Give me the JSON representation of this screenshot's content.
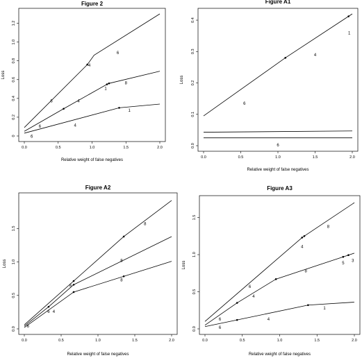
{
  "chart_data": [
    {
      "type": "line",
      "title": "Figure 2",
      "xlabel": "Relative weight of false negatives",
      "ylabel": "Loss",
      "xlim": [
        0,
        2
      ],
      "ylim": [
        0,
        1.3
      ],
      "xticks": [
        "0.0",
        "0.5",
        "1.0",
        "1.5",
        "2.0"
      ],
      "yticks": [
        "0",
        "0.2",
        "0.4",
        "0.6",
        "0.8",
        "1.0",
        "1.2"
      ],
      "series": [
        {
          "x": [
            0,
            0.93,
            1.03,
            2.0
          ],
          "y": [
            0.09,
            0.76,
            0.86,
            1.3
          ],
          "markers": [
            0.93
          ]
        },
        {
          "x": [
            0,
            0.58,
            1.22,
            1.25,
            2.0
          ],
          "y": [
            0.05,
            0.29,
            0.55,
            0.56,
            0.69
          ],
          "markers": [
            0.58,
            1.22,
            1.25
          ]
        },
        {
          "x": [
            0,
            1.4,
            2.0
          ],
          "y": [
            0.03,
            0.3,
            0.34
          ],
          "markers": [
            1.4
          ]
        }
      ],
      "annotations": [
        {
          "text": "6",
          "x": 1.38,
          "y": 0.87
        },
        {
          "text": "4",
          "x": 0.96,
          "y": 0.74
        },
        {
          "text": "6",
          "x": 0.4,
          "y": 0.36
        },
        {
          "text": "4",
          "x": 0.8,
          "y": 0.36
        },
        {
          "text": "1",
          "x": 1.2,
          "y": 0.49
        },
        {
          "text": "8",
          "x": 1.5,
          "y": 0.55
        },
        {
          "text": "6",
          "x": 0.23,
          "y": 0.09
        },
        {
          "text": "4",
          "x": 0.75,
          "y": 0.1
        },
        {
          "text": "1",
          "x": 1.55,
          "y": 0.26
        },
        {
          "text": "6",
          "x": 0.11,
          "y": -0.02
        }
      ]
    },
    {
      "type": "line",
      "title": "Figure A1",
      "xlabel": "Relative weight of false negatives",
      "ylabel": "Loss",
      "xlim": [
        0,
        2
      ],
      "ylim": [
        0,
        0.42
      ],
      "xticks": [
        "0.0",
        "0.5",
        "1.0",
        "1.5",
        "2.0"
      ],
      "yticks": [
        "0.0",
        "0.1",
        "0.2",
        "0.3",
        "0.4"
      ],
      "series": [
        {
          "x": [
            0,
            1.1,
            2.0
          ],
          "y": [
            0.095,
            0.28,
            0.42
          ],
          "markers": [
            1.1,
            1.95
          ]
        },
        {
          "x": [
            0,
            2.0
          ],
          "y": [
            0.043,
            0.047
          ],
          "markers": []
        },
        {
          "x": [
            0,
            2.0
          ],
          "y": [
            0.025,
            0.025
          ],
          "markers": []
        }
      ],
      "annotations": [
        {
          "text": "1",
          "x": 1.96,
          "y": 0.355
        },
        {
          "text": "4",
          "x": 1.5,
          "y": 0.285
        },
        {
          "text": "6",
          "x": 0.55,
          "y": 0.13
        },
        {
          "text": "6",
          "x": 1.0,
          "y": -0.002
        }
      ]
    },
    {
      "type": "line",
      "title": "Figure A2",
      "xlabel": "Relative weight of false negatives",
      "ylabel": "Loss",
      "xlim": [
        0,
        2
      ],
      "ylim": [
        0,
        1.95
      ],
      "xticks": [
        "0.0",
        "0.5",
        "1.0",
        "1.5",
        "2.0"
      ],
      "yticks": [
        "0.0",
        "0.5",
        "1.0",
        "1.5"
      ],
      "series": [
        {
          "x": [
            0,
            1.35,
            2.0
          ],
          "y": [
            0.06,
            1.38,
            1.92
          ],
          "markers": [
            0.67,
            1.35
          ]
        },
        {
          "x": [
            0,
            0.33,
            0.67,
            2.0
          ],
          "y": [
            0.04,
            0.33,
            0.66,
            1.38
          ],
          "markers": [
            0.33,
            0.67
          ]
        },
        {
          "x": [
            0,
            0.67,
            2.0
          ],
          "y": [
            0.02,
            0.55,
            1.01
          ],
          "markers": [
            0.67,
            1.35
          ]
        }
      ],
      "annotations": [
        {
          "text": "8",
          "x": 1.64,
          "y": 1.55
        },
        {
          "text": "8",
          "x": 1.32,
          "y": 1.0
        },
        {
          "text": "8",
          "x": 1.32,
          "y": 0.71
        },
        {
          "text": "6",
          "x": 0.63,
          "y": 0.62
        },
        {
          "text": "4",
          "x": 0.4,
          "y": 0.24
        },
        {
          "text": "6",
          "x": 0.33,
          "y": 0.24
        },
        {
          "text": "6",
          "x": 0.05,
          "y": 0.02
        }
      ]
    },
    {
      "type": "line",
      "title": "Figure A3",
      "xlabel": "Relative weight of false negatives",
      "ylabel": "Loss",
      "xlim": [
        0,
        2
      ],
      "ylim": [
        0,
        1.72
      ],
      "xticks": [
        "0.0",
        "0.5",
        "1.0",
        "1.5",
        "2.0"
      ],
      "yticks": [
        "0.0",
        "0.5",
        "1.0",
        "1.5"
      ],
      "series": [
        {
          "x": [
            0,
            1.3,
            2.0
          ],
          "y": [
            0.1,
            1.23,
            1.7
          ],
          "markers": [
            1.3,
            1.33
          ]
        },
        {
          "x": [
            0,
            0.43,
            0.95,
            1.85,
            2.0
          ],
          "y": [
            0.05,
            0.35,
            0.67,
            0.97,
            1.02
          ],
          "markers": [
            0.43,
            0.95,
            1.85,
            1.92
          ]
        },
        {
          "x": [
            0,
            0.43,
            1.38,
            2.0
          ],
          "y": [
            0.03,
            0.12,
            0.32,
            0.36
          ],
          "markers": [
            0.43,
            1.38
          ]
        }
      ],
      "annotations": [
        {
          "text": "8",
          "x": 1.65,
          "y": 1.36
        },
        {
          "text": "4",
          "x": 1.3,
          "y": 1.09
        },
        {
          "text": "6",
          "x": 0.6,
          "y": 0.55
        },
        {
          "text": "4",
          "x": 0.65,
          "y": 0.42
        },
        {
          "text": "8",
          "x": 1.35,
          "y": 0.76
        },
        {
          "text": "5",
          "x": 1.85,
          "y": 0.87
        },
        {
          "text": "3",
          "x": 1.98,
          "y": 0.9
        },
        {
          "text": "6",
          "x": 0.2,
          "y": 0.11
        },
        {
          "text": "4",
          "x": 0.85,
          "y": 0.11
        },
        {
          "text": "1",
          "x": 1.6,
          "y": 0.26
        },
        {
          "text": "6",
          "x": 0.2,
          "y": 0.0
        }
      ]
    }
  ]
}
